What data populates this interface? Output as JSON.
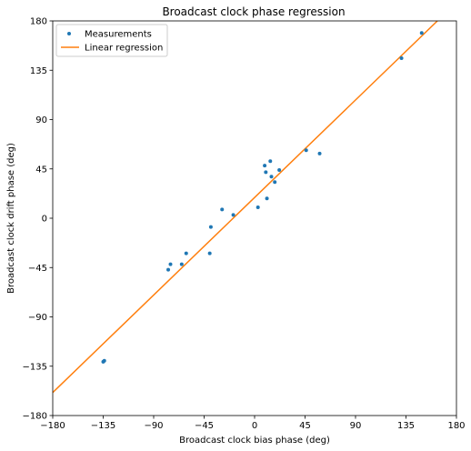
{
  "chart_data": {
    "type": "scatter",
    "title": "Broadcast clock phase regression",
    "xlabel": "Broadcast clock bias phase (deg)",
    "ylabel": "Broadcast clock drift phase (deg)",
    "xlim": [
      -180,
      180
    ],
    "ylim": [
      -180,
      180
    ],
    "xticks": [
      -180,
      -135,
      -90,
      -45,
      0,
      45,
      90,
      135,
      180
    ],
    "yticks": [
      -180,
      -135,
      -90,
      -45,
      0,
      45,
      90,
      135,
      180
    ],
    "xtick_labels": [
      "−180",
      "−135",
      "−90",
      "−45",
      "0",
      "45",
      "90",
      "135",
      "180"
    ],
    "ytick_labels": [
      "−180",
      "−135",
      "−90",
      "−45",
      "0",
      "45",
      "90",
      "135",
      "180"
    ],
    "grid": false,
    "legend_position": "top-left",
    "series": [
      {
        "name": "Measurements",
        "kind": "points",
        "color": "#1f77b4",
        "x": [
          -135,
          -134,
          -77,
          -75,
          -65,
          -61,
          -40,
          -39,
          -29,
          -19,
          3,
          9,
          10,
          11,
          14,
          15,
          18,
          22,
          46,
          58,
          131,
          149
        ],
        "y": [
          -131,
          -130,
          -47,
          -42,
          -42,
          -32,
          -32,
          -8,
          8,
          3,
          10,
          48,
          42,
          18,
          52,
          38,
          33,
          44,
          62,
          59,
          146,
          169
        ]
      },
      {
        "name": "Linear regression",
        "kind": "line",
        "color": "#ff7f0e",
        "x": [
          -180,
          163
        ],
        "y": [
          -159,
          180
        ]
      }
    ]
  }
}
